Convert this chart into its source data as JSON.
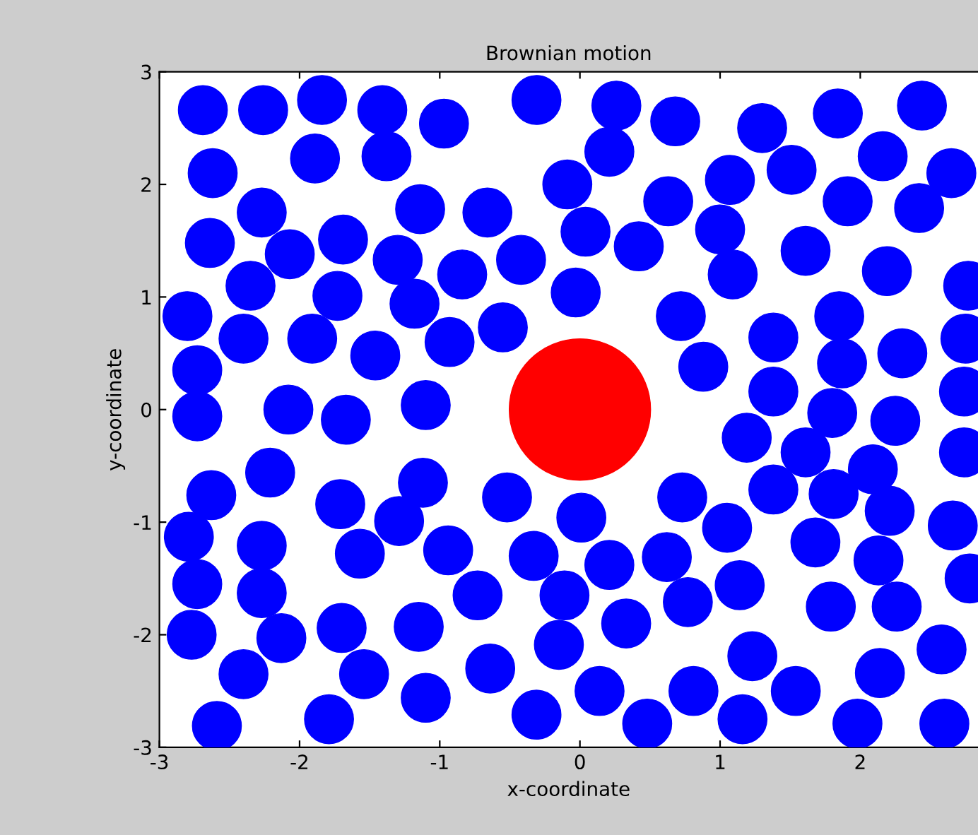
{
  "chart_data": {
    "type": "bubble",
    "title": "Brownian motion",
    "xlabel": "x-coordinate",
    "ylabel": "y-coordinate",
    "xlim": [
      -3,
      2.84
    ],
    "ylim": [
      -3,
      3
    ],
    "xticks": [
      -3,
      -2,
      -1,
      0,
      1,
      2
    ],
    "yticks": [
      -3,
      -2,
      -1,
      0,
      1,
      2,
      3
    ],
    "grid": false,
    "legend": false,
    "series": [
      {
        "color": "#0000ff",
        "x": [
          -2.69,
          -2.26,
          -1.84,
          -1.41,
          -0.97,
          -0.31,
          0.26,
          0.68,
          1.3,
          1.84,
          2.44,
          -2.62,
          -1.89,
          -1.38,
          -0.09,
          0.21,
          0.63,
          1.07,
          1.51,
          2.16,
          2.65,
          -2.27,
          -2.64,
          -2.07,
          -1.69,
          -1.3,
          -1.14,
          -0.66,
          -0.84,
          -0.42,
          0.04,
          0.42,
          1.0,
          1.61,
          1.91,
          2.42,
          -2.8,
          -2.35,
          -1.73,
          -1.18,
          -0.03,
          1.09,
          2.19,
          2.77,
          -2.4,
          -1.91,
          -1.46,
          -0.93,
          -0.55,
          0.72,
          1.38,
          1.85,
          2.3,
          2.75,
          -2.73,
          0.88,
          1.87,
          -2.73,
          -2.08,
          -1.67,
          -1.1,
          1.38,
          1.8,
          2.25,
          2.74,
          1.19,
          1.61,
          2.09,
          2.74,
          -2.63,
          -2.21,
          -1.71,
          -1.12,
          -0.52,
          0.01,
          0.73,
          1.38,
          1.81,
          2.21,
          2.66,
          -2.79,
          -2.27,
          -1.57,
          -1.29,
          -0.94,
          -0.33,
          0.21,
          0.62,
          1.05,
          1.68,
          2.13,
          2.78,
          -2.73,
          -2.27,
          -1.7,
          -1.15,
          -0.73,
          -0.11,
          0.77,
          1.14,
          1.79,
          2.26,
          -2.77,
          -2.13,
          -0.15,
          0.33,
          1.23,
          2.58,
          -2.4,
          -1.54,
          -0.64,
          0.14,
          0.81,
          1.54,
          2.14,
          -2.59,
          -1.79,
          -1.1,
          -0.31,
          0.48,
          1.16,
          1.98,
          2.6
        ],
        "values": [
          2.66,
          2.66,
          2.75,
          2.66,
          2.54,
          2.75,
          2.7,
          2.56,
          2.5,
          2.63,
          2.7,
          2.1,
          2.23,
          2.25,
          2.0,
          2.29,
          1.85,
          2.04,
          2.13,
          2.25,
          2.1,
          1.75,
          1.48,
          1.38,
          1.51,
          1.33,
          1.78,
          1.75,
          1.2,
          1.33,
          1.58,
          1.45,
          1.6,
          1.41,
          1.85,
          1.79,
          0.83,
          1.1,
          1.01,
          0.94,
          1.04,
          1.2,
          1.23,
          1.1,
          0.63,
          0.63,
          0.48,
          0.6,
          0.73,
          0.83,
          0.64,
          0.83,
          0.5,
          0.63,
          0.35,
          0.38,
          0.41,
          -0.06,
          0.0,
          -0.09,
          0.04,
          0.16,
          -0.03,
          -0.1,
          0.16,
          -0.25,
          -0.38,
          -0.53,
          -0.38,
          -0.76,
          -0.56,
          -0.84,
          -0.65,
          -0.78,
          -0.96,
          -0.78,
          -0.71,
          -0.75,
          -0.9,
          -1.03,
          -1.13,
          -1.21,
          -1.28,
          -0.99,
          -1.25,
          -1.3,
          -1.38,
          -1.31,
          -1.05,
          -1.18,
          -1.34,
          -1.5,
          -1.55,
          -1.63,
          -1.94,
          -1.93,
          -1.65,
          -1.65,
          -1.71,
          -1.56,
          -1.75,
          -1.75,
          -2.0,
          -2.03,
          -2.09,
          -1.9,
          -2.19,
          -2.13,
          -2.35,
          -2.35,
          -2.3,
          -2.5,
          -2.5,
          -2.5,
          -2.34,
          -2.81,
          -2.75,
          -2.56,
          -2.71,
          -2.79,
          -2.75,
          -2.79,
          -2.79
        ],
        "sizes": [
          0.12,
          0.12,
          0.12,
          0.12,
          0.12,
          0.12,
          0.12,
          0.12,
          0.12,
          0.12,
          0.12,
          0.12,
          0.12,
          0.12,
          0.12,
          0.12,
          0.12,
          0.12,
          0.12,
          0.12,
          0.12,
          0.12,
          0.12,
          0.12,
          0.12,
          0.12,
          0.12,
          0.12,
          0.12,
          0.12,
          0.12,
          0.12,
          0.12,
          0.12,
          0.12,
          0.12,
          0.12,
          0.12,
          0.12,
          0.12,
          0.12,
          0.12,
          0.12,
          0.12,
          0.12,
          0.12,
          0.12,
          0.12,
          0.12,
          0.12,
          0.12,
          0.12,
          0.12,
          0.12,
          0.12,
          0.12,
          0.12,
          0.12,
          0.12,
          0.12,
          0.12,
          0.12,
          0.12,
          0.12,
          0.12,
          0.12,
          0.12,
          0.12,
          0.12,
          0.12,
          0.12,
          0.12,
          0.12,
          0.12,
          0.12,
          0.12,
          0.12,
          0.12,
          0.12,
          0.12,
          0.12,
          0.12,
          0.12,
          0.12,
          0.12,
          0.12,
          0.12,
          0.12,
          0.12,
          0.12,
          0.12,
          0.12,
          0.12,
          0.12,
          0.12,
          0.12,
          0.12,
          0.12,
          0.12,
          0.12,
          0.12,
          0.12,
          0.12,
          0.12,
          0.12,
          0.12,
          0.12,
          0.12,
          0.12,
          0.12,
          0.12,
          0.12,
          0.12,
          0.12,
          0.12,
          0.12,
          0.12,
          0.12,
          0.12,
          0.12,
          0.12,
          0.12,
          0.12
        ]
      },
      {
        "color": "#ff0000",
        "x": [
          0
        ],
        "values": [
          0
        ],
        "sizes": [
          1
        ]
      }
    ]
  }
}
